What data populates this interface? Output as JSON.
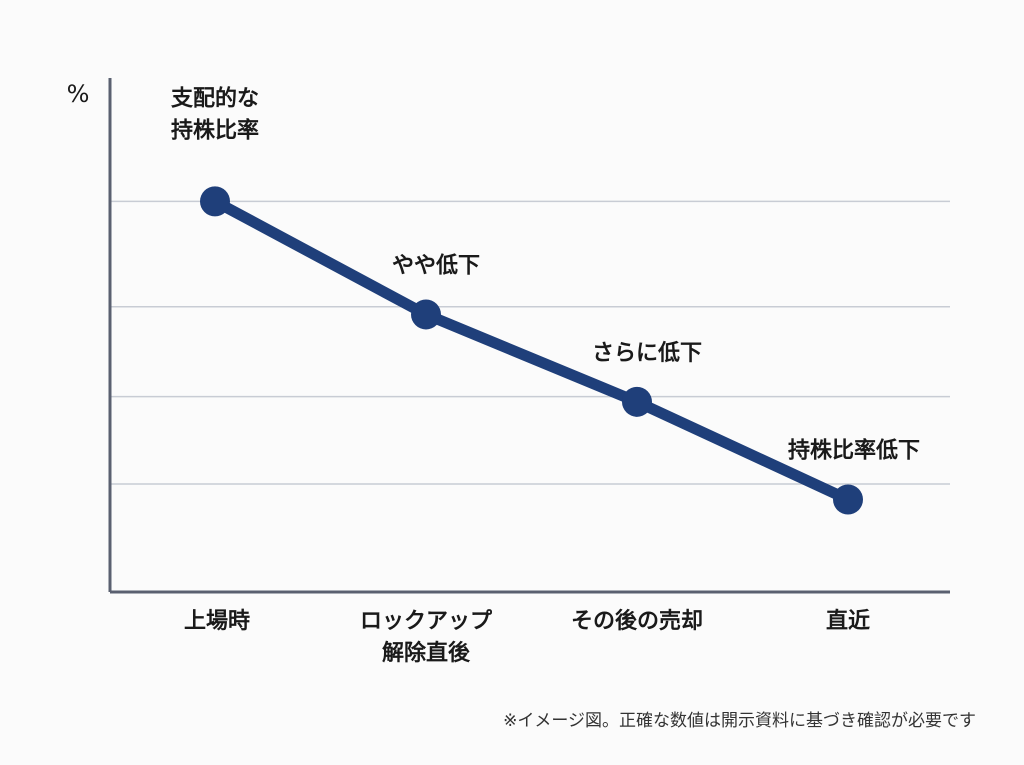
{
  "chart_data": {
    "type": "line",
    "title": "",
    "ylabel": "%",
    "xlabel": "",
    "categories": [
      [
        "上場時"
      ],
      [
        "ロックアップ",
        "解除直後"
      ],
      [
        "その後の売却"
      ],
      [
        "直近"
      ]
    ],
    "values": [
      76,
      54,
      37,
      18
    ],
    "point_labels": [
      [
        "支配的な",
        "持株比率"
      ],
      [
        "やや低下"
      ],
      [
        "さらに低下"
      ],
      [
        "持株比率低下"
      ]
    ],
    "ylim": [
      0,
      100
    ],
    "gridlines": [
      76,
      55.5,
      38,
      21
    ],
    "grid": true,
    "line_color": "#1f3f7a",
    "axis_color": "#5a6070",
    "grid_color": "#c8ccd4"
  },
  "footnote": "※イメージ図。正確な数値は開示資料に基づき確認が必要です"
}
